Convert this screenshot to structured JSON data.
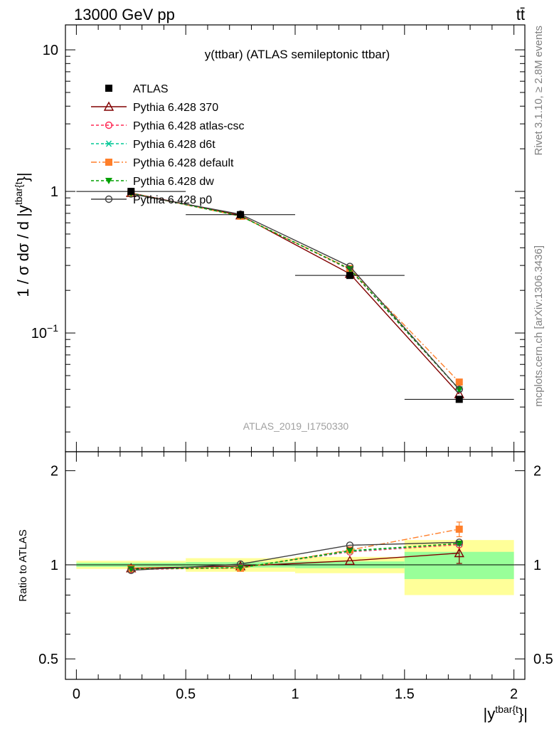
{
  "header": {
    "left": "13000 GeV pp",
    "right": "tt̄",
    "side_top": "Rivet 3.1.10, ≥ 2.8M events",
    "side_bottom": "mcplots.cern.ch [arXiv:1306.3436]"
  },
  "chart_data": [
    {
      "type": "line",
      "panel": "main",
      "title": "y(ttbar) (ATLAS semileptonic ttbar)",
      "watermark": "ATLAS_2019_I1750330",
      "ylabel": {
        "prefix": "1 / σ dσ / d |y",
        "sup": "tbar{t",
        "suffix": "}|"
      },
      "yscale": "log",
      "ylim": [
        0.0145,
        15
      ],
      "xlim": [
        -0.05,
        2.05
      ],
      "yticks": [
        {
          "value": 10,
          "label": "10"
        },
        {
          "value": 1,
          "label": "1"
        },
        {
          "value": 0.1,
          "base": "10",
          "exp": "−1"
        }
      ],
      "x": [
        0.25,
        0.75,
        1.25,
        1.75
      ],
      "data": {
        "name": "ATLAS",
        "values": [
          1.0,
          0.685,
          0.255,
          0.034
        ],
        "xerr": [
          0.25,
          0.25,
          0.25,
          0.25
        ],
        "color": "#000000"
      },
      "series": [
        {
          "name": "Pythia 6.428 370",
          "values": [
            0.975,
            0.678,
            0.262,
            0.037
          ],
          "color": "#800000",
          "dash": "",
          "marker": "triangle-open"
        },
        {
          "name": "Pythia 6.428 atlas-csc",
          "values": [
            0.965,
            0.672,
            0.28,
            0.04
          ],
          "color": "#ff2a55",
          "dash": "4,3",
          "marker": "circle-open"
        },
        {
          "name": "Pythia 6.428 d6t",
          "values": [
            0.97,
            0.67,
            0.282,
            0.04
          ],
          "color": "#00c896",
          "dash": "4,3",
          "marker": "star"
        },
        {
          "name": "Pythia 6.428 default",
          "values": [
            0.972,
            0.668,
            0.285,
            0.045
          ],
          "color": "#ff7f2a",
          "dash": "8,3,2,3",
          "marker": "square"
        },
        {
          "name": "Pythia 6.428 dw",
          "values": [
            0.97,
            0.67,
            0.283,
            0.04
          ],
          "color": "#00a000",
          "dash": "4,3",
          "marker": "triangle-down"
        },
        {
          "name": "Pythia 6.428 p0",
          "values": [
            0.96,
            0.69,
            0.295,
            0.04
          ],
          "color": "#404040",
          "dash": "",
          "marker": "circle-open"
        }
      ],
      "legend_position": "top-left"
    },
    {
      "type": "line",
      "panel": "ratio",
      "ylabel": "Ratio to ATLAS",
      "xlabel": {
        "prefix": "|y",
        "sup": "tbar{t",
        "suffix": "}|"
      },
      "yscale": "log",
      "ylim": [
        0.43,
        2.3
      ],
      "xlim": [
        -0.05,
        2.05
      ],
      "yticks": [
        {
          "value": 2,
          "label": "2"
        },
        {
          "value": 1,
          "label": "1"
        },
        {
          "value": 0.5,
          "label": "0.5"
        }
      ],
      "xticks": [
        {
          "value": 0,
          "label": "0"
        },
        {
          "value": 0.5,
          "label": "0.5"
        },
        {
          "value": 1,
          "label": "1"
        },
        {
          "value": 1.5,
          "label": "1.5"
        },
        {
          "value": 2,
          "label": "2"
        }
      ],
      "bands": [
        {
          "x0": 0.0,
          "x1": 0.5,
          "stat": [
            0.985,
            1.015
          ],
          "total": [
            0.97,
            1.03
          ]
        },
        {
          "x0": 0.5,
          "x1": 1.0,
          "stat": [
            0.98,
            1.02
          ],
          "total": [
            0.95,
            1.05
          ]
        },
        {
          "x0": 1.0,
          "x1": 1.5,
          "stat": [
            0.975,
            1.025
          ],
          "total": [
            0.94,
            1.06
          ]
        },
        {
          "x0": 1.5,
          "x1": 2.0,
          "stat": [
            0.9,
            1.1
          ],
          "total": [
            0.8,
            1.2
          ]
        }
      ],
      "x": [
        0.25,
        0.75,
        1.25,
        1.75
      ],
      "series": [
        {
          "name": "Pythia 6.428 370",
          "values": [
            0.975,
            0.99,
            1.03,
            1.09
          ],
          "err": [
            0,
            0,
            0,
            0.08
          ]
        },
        {
          "name": "Pythia 6.428 atlas-csc",
          "values": [
            0.965,
            0.98,
            1.1,
            1.16
          ],
          "err": [
            0,
            0,
            0,
            0
          ]
        },
        {
          "name": "Pythia 6.428 d6t",
          "values": [
            0.97,
            0.978,
            1.105,
            1.17
          ],
          "err": [
            0,
            0,
            0,
            0
          ]
        },
        {
          "name": "Pythia 6.428 default",
          "values": [
            0.972,
            0.975,
            1.115,
            1.3
          ],
          "err": [
            0,
            0,
            0,
            0.07
          ]
        },
        {
          "name": "Pythia 6.428 dw",
          "values": [
            0.97,
            0.978,
            1.11,
            1.17
          ],
          "err": [
            0,
            0,
            0,
            0
          ]
        },
        {
          "name": "Pythia 6.428 p0",
          "values": [
            0.96,
            1.005,
            1.155,
            1.18
          ],
          "err": [
            0,
            0,
            0,
            0
          ]
        }
      ]
    }
  ]
}
